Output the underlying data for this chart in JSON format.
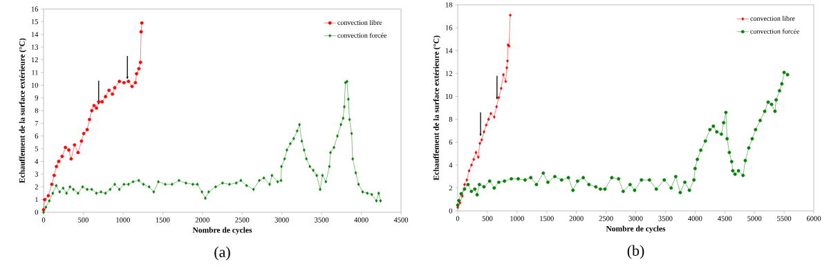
{
  "chart_data": [
    {
      "type": "line",
      "title": "(a)",
      "xlabel": "Nombre de cycles",
      "ylabel": "Echauffement de la surface extérieure (°C)",
      "xlim": [
        0,
        4500
      ],
      "ylim": [
        0,
        16
      ],
      "xticks": [
        0,
        500,
        1000,
        1500,
        2000,
        2500,
        3000,
        3500,
        4000,
        4500
      ],
      "yticks": [
        0,
        1,
        2,
        3,
        4,
        5,
        6,
        7,
        8,
        9,
        10,
        11,
        12,
        13,
        14,
        15,
        16
      ],
      "legend": "top right",
      "grid": false,
      "series": [
        {
          "name": "convection libre",
          "color": "#ff0000",
          "marker": "circle",
          "x": [
            0,
            15,
            60,
            104,
            133,
            162,
            191,
            234,
            275,
            318,
            347,
            390,
            434,
            477,
            506,
            549,
            578,
            607,
            636,
            665,
            694,
            737,
            780,
            824,
            867,
            896,
            954,
            1012,
            1069,
            1113,
            1156,
            1171,
            1200,
            1220,
            1228,
            1237
          ],
          "values": [
            0.2,
            1.0,
            1.3,
            2.2,
            2.9,
            3.6,
            4.0,
            4.4,
            5.1,
            4.9,
            4.2,
            5.3,
            4.7,
            5.6,
            6.2,
            6.5,
            7.3,
            8.0,
            8.4,
            8.2,
            8.7,
            8.7,
            9.1,
            9.6,
            9.3,
            9.8,
            10.3,
            10.2,
            10.3,
            9.9,
            10.2,
            10.9,
            11.3,
            11.8,
            14.2,
            14.9
          ]
        },
        {
          "name": "convection forcée",
          "color": "#008000",
          "marker": "diamond",
          "x": [
            0,
            29,
            72,
            116,
            159,
            202,
            246,
            289,
            332,
            376,
            434,
            491,
            549,
            607,
            665,
            723,
            780,
            838,
            896,
            954,
            1012,
            1069,
            1127,
            1199,
            1257,
            1329,
            1387,
            1445,
            1532,
            1618,
            1705,
            1792,
            1879,
            1936,
            1994,
            2036,
            2079,
            2166,
            2253,
            2340,
            2426,
            2484,
            2556,
            2643,
            2716,
            2773,
            2846,
            2875,
            2947,
            2990,
            2995,
            3034,
            3063,
            3106,
            3149,
            3193,
            3222,
            3251,
            3280,
            3309,
            3352,
            3395,
            3439,
            3482,
            3511,
            3554,
            3598,
            3612,
            3656,
            3699,
            3743,
            3771,
            3786,
            3800,
            3820,
            3837,
            3852,
            3878,
            3892,
            3930,
            3965,
            4017,
            4075,
            4132,
            4190,
            4219,
            4242
          ],
          "values": [
            0,
            0.4,
            0.9,
            1.5,
            2.1,
            1.6,
            1.9,
            1.5,
            2.0,
            1.8,
            1.5,
            2.0,
            1.8,
            1.8,
            1.5,
            1.6,
            1.5,
            1.8,
            2.2,
            1.8,
            2.2,
            2.2,
            2.4,
            2.5,
            2.2,
            2.0,
            1.6,
            2.4,
            2.2,
            2.2,
            2.5,
            2.3,
            2.2,
            2.2,
            1.6,
            1.1,
            1.6,
            2.0,
            2.3,
            2.2,
            2.3,
            2.5,
            2.1,
            1.8,
            2.5,
            2.7,
            2.2,
            2.9,
            2.4,
            2.5,
            3.6,
            4.2,
            4.9,
            5.4,
            5.8,
            6.4,
            6.9,
            5.6,
            4.9,
            4.2,
            3.6,
            3.3,
            2.9,
            1.8,
            2.9,
            2.4,
            3.6,
            4.7,
            5.1,
            6.0,
            6.9,
            7.4,
            8.3,
            10.2,
            10.3,
            8.9,
            7.3,
            6.2,
            4.2,
            3.1,
            2.2,
            1.6,
            1.5,
            1.4,
            0.9,
            1.5,
            0.9
          ]
        }
      ]
    },
    {
      "type": "line",
      "title": "(b)",
      "xlabel": "Nombre de cycles",
      "ylabel": "Echauffement de la surface extérieure (°C)",
      "xlim": [
        0,
        6000
      ],
      "ylim": [
        0,
        18
      ],
      "xticks": [
        0,
        500,
        1000,
        1500,
        2000,
        2500,
        3000,
        3500,
        4000,
        4500,
        5000,
        5500,
        6000
      ],
      "yticks": [
        0,
        2,
        4,
        6,
        8,
        10,
        12,
        14,
        16,
        18
      ],
      "legend": "top right",
      "grid": false,
      "series": [
        {
          "name": "convection libre",
          "color": "#ff0000",
          "marker": "diamond",
          "x": [
            0,
            38,
            77,
            115,
            154,
            192,
            231,
            269,
            308,
            346,
            373,
            404,
            442,
            481,
            519,
            558,
            615,
            654,
            692,
            731,
            769,
            808,
            827,
            838,
            846,
            865,
            885
          ],
          "values": [
            0.3,
            0.7,
            1.3,
            2.3,
            2.7,
            3.5,
            4.0,
            4.5,
            5.1,
            4.7,
            5.9,
            6.2,
            6.9,
            7.5,
            8.0,
            8.5,
            8.2,
            9.1,
            9.9,
            10.7,
            11.9,
            11.3,
            12.5,
            13.1,
            14.5,
            14.4,
            17.1
          ]
        },
        {
          "name": "convection forcée",
          "color": "#008000",
          "marker": "circle",
          "x": [
            0,
            19,
            58,
            115,
            173,
            231,
            288,
            327,
            365,
            442,
            538,
            615,
            692,
            788,
            904,
            1019,
            1135,
            1231,
            1327,
            1442,
            1519,
            1635,
            1750,
            1865,
            1942,
            2019,
            2115,
            2211,
            2327,
            2404,
            2481,
            2596,
            2711,
            2788,
            2904,
            2981,
            3096,
            3231,
            3346,
            3481,
            3596,
            3673,
            3750,
            3827,
            3904,
            3981,
            4000,
            4038,
            4096,
            4173,
            4250,
            4308,
            4366,
            4443,
            4481,
            4519,
            4539,
            4577,
            4616,
            4635,
            4673,
            4731,
            4808,
            4846,
            4904,
            4962,
            5019,
            5096,
            5173,
            5231,
            5289,
            5346,
            5366,
            5423,
            5462,
            5500,
            5558
          ],
          "values": [
            0.5,
            0.9,
            1.5,
            1.9,
            2.3,
            1.7,
            1.9,
            1.4,
            2.3,
            2.1,
            2.6,
            2.0,
            2.5,
            2.6,
            2.8,
            2.8,
            2.7,
            2.9,
            2.3,
            3.3,
            2.5,
            3.0,
            2.7,
            2.9,
            1.8,
            2.6,
            2.9,
            2.3,
            2.1,
            1.9,
            1.9,
            2.9,
            2.8,
            1.7,
            2.3,
            1.8,
            2.7,
            2.7,
            1.9,
            2.7,
            2.0,
            3.0,
            1.6,
            2.5,
            1.8,
            2.7,
            3.7,
            4.5,
            5.3,
            6.1,
            7.1,
            7.4,
            6.9,
            6.7,
            7.7,
            8.6,
            6.3,
            5.1,
            4.3,
            3.5,
            3.2,
            3.5,
            3.1,
            4.4,
            5.5,
            6.3,
            7.1,
            7.9,
            8.7,
            9.5,
            9.3,
            8.7,
            9.7,
            10.5,
            11.1,
            12.1,
            11.9
          ]
        }
      ]
    }
  ]
}
